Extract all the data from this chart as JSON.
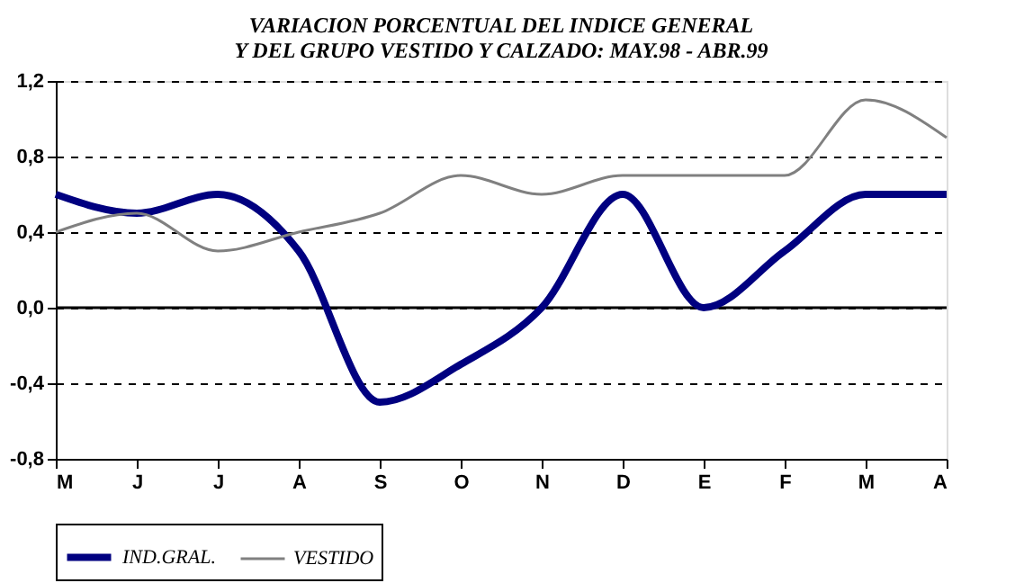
{
  "chart_data": {
    "type": "line",
    "title": [
      "VARIACION PORCENTUAL DEL INDICE GENERAL",
      "Y DEL GRUPO VESTIDO Y CALZADO: MAY.98 - ABR.99"
    ],
    "categories": [
      "M",
      "J",
      "J",
      "A",
      "S",
      "O",
      "N",
      "D",
      "E",
      "F",
      "M",
      "A"
    ],
    "series": [
      {
        "name": "IND.GRAL.",
        "color": "#000080",
        "values": [
          0.6,
          0.5,
          0.6,
          0.3,
          -0.5,
          -0.3,
          0.0,
          0.6,
          0.0,
          0.3,
          0.6,
          0.6
        ]
      },
      {
        "name": "VESTIDO",
        "color": "#808080",
        "values": [
          0.4,
          0.5,
          0.3,
          0.4,
          0.5,
          0.7,
          0.6,
          0.7,
          0.7,
          0.7,
          1.1,
          0.9
        ]
      }
    ],
    "ylim": [
      -0.8,
      1.2
    ],
    "yticks": [
      {
        "value": -0.8,
        "label": "-0,8"
      },
      {
        "value": -0.4,
        "label": "-0,4"
      },
      {
        "value": 0,
        "label": "0,0"
      },
      {
        "value": 0.4,
        "label": "0,4"
      },
      {
        "value": 0.8,
        "label": "0,8"
      },
      {
        "value": 1.2,
        "label": "1,2"
      }
    ],
    "grid": "y",
    "ref_lines": [
      {
        "axis": "y",
        "value": 0,
        "color": "#000000",
        "line_style": "solid"
      }
    ],
    "legend": "bottom"
  }
}
